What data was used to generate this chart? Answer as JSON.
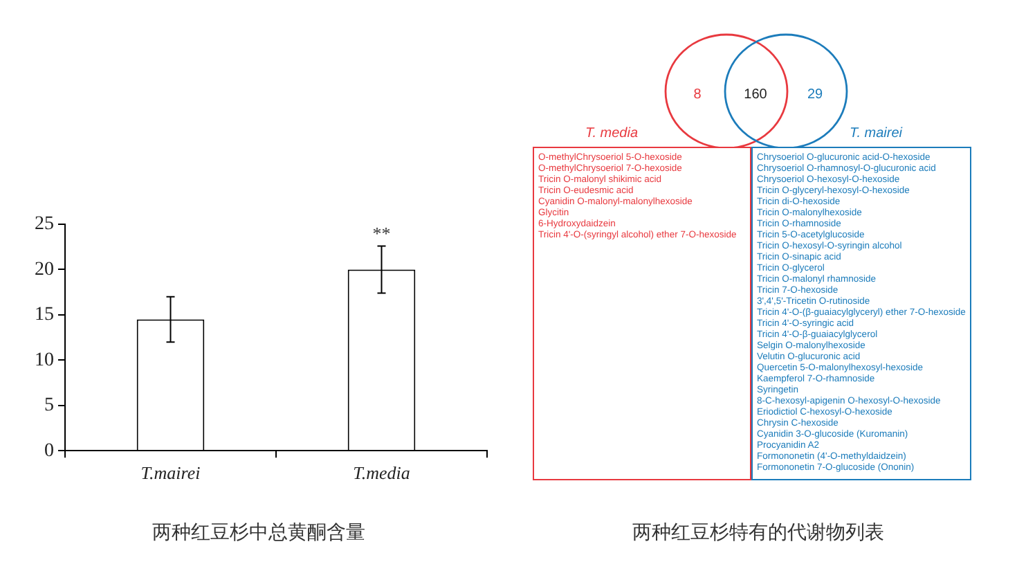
{
  "chart_data": [
    {
      "type": "bar",
      "title": "两种红豆杉中总黄酮含量",
      "categories": [
        "T.mairei",
        "T.media"
      ],
      "values": [
        14.5,
        20
      ],
      "errors": [
        2.5,
        2.6
      ],
      "color": "#ffffff",
      "ylim": [
        0,
        25
      ],
      "yticks": [
        0,
        5,
        10,
        15,
        20,
        25
      ],
      "grid": false,
      "legend": false,
      "annotations": [
        {
          "text": "**",
          "x": "T.media",
          "y": 20
        }
      ]
    },
    {
      "type": "other",
      "title": "两种红豆杉特有的代谢物列表",
      "categories": [
        "T. media",
        null,
        "T. mairei"
      ],
      "values": [
        8,
        160,
        29
      ],
      "colors": [
        "#e8393f",
        "#222222",
        "#1c7cbb"
      ],
      "data_labels": true,
      "annotations": [
        "O-methylChrysoeriol 5-O-hexoside",
        "O-methylChrysoeriol 7-O-hexoside",
        "Tricin O-malonyl shikimic acid",
        "Tricin O-eudesmic acid",
        "Cyanidin O-malonyl-malonylhexoside",
        "Glycitin",
        "6-Hydroxydaidzein",
        "Tricin 4'-O-(syringyl alcohol) ether 7-O-hexoside",
        "Chrysoeriol O-glucuronic acid-O-hexoside",
        "Chrysoeriol O-rhamnosyl-O-glucuronic acid",
        "Chrysoeriol O-hexosyl-O-hexoside",
        "Tricin O-glyceryl-hexosyl-O-hexoside",
        "Tricin di-O-hexoside",
        "Tricin O-malonylhexoside",
        "Tricin O-rhamnoside",
        "Tricin 5-O-acetylglucoside",
        "Tricin O-hexosyl-O-syringin alcohol",
        "Tricin O-sinapic acid",
        "Tricin O-glycerol",
        "Tricin O-malonyl rhamnoside",
        "Tricin 7-O-hexoside",
        "3',4',5'-Tricetin O-rutinoside",
        "Tricin 4'-O-(β-guaiacylglyceryl) ether 7-O-hexoside",
        "Tricin 4'-O-syringic acid",
        "Tricin 4'-O-β-guaiacylglycerol",
        "Selgin O-malonylhexoside",
        "Velutin O-glucuronic acid",
        "Quercetin 5-O-malonylhexosyl-hexoside",
        "Kaempferol 7-O-rhamnoside",
        "Syringetin",
        "8-C-hexosyl-apigenin O-hexosyl-O-hexoside",
        "Eriodictiol C-hexosyl-O-hexoside",
        "Chrysin C-hexoside",
        "Cyanidin 3-O-glucoside (Kuromanin)",
        "Procyanidin A2",
        "Formononetin (4'-O-methyldaidzein)",
        "Formononetin 7-O-glucoside (Ononin)"
      ]
    }
  ]
}
